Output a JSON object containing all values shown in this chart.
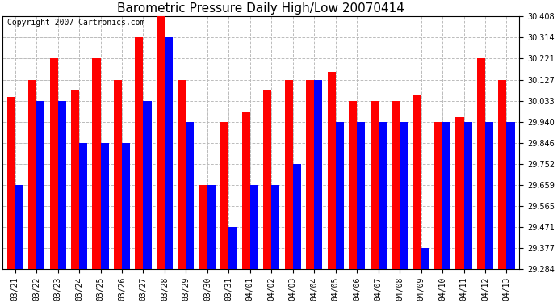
{
  "title": "Barometric Pressure Daily High/Low 20070414",
  "copyright": "Copyright 2007 Cartronics.com",
  "dates": [
    "03/21",
    "03/22",
    "03/23",
    "03/24",
    "03/25",
    "03/26",
    "03/27",
    "03/28",
    "03/29",
    "03/30",
    "03/31",
    "04/01",
    "04/02",
    "04/03",
    "04/04",
    "04/05",
    "04/06",
    "04/07",
    "04/08",
    "04/09",
    "04/10",
    "04/11",
    "04/12",
    "04/13"
  ],
  "highs": [
    30.05,
    30.127,
    30.221,
    30.08,
    30.221,
    30.127,
    30.314,
    30.408,
    30.127,
    29.659,
    29.94,
    29.98,
    30.08,
    30.127,
    30.127,
    30.16,
    30.033,
    30.033,
    30.033,
    30.06,
    29.94,
    29.96,
    30.221,
    30.127
  ],
  "lows": [
    29.659,
    30.033,
    30.033,
    29.846,
    29.846,
    29.846,
    30.033,
    30.314,
    29.94,
    29.659,
    29.471,
    29.659,
    29.659,
    29.752,
    30.127,
    29.94,
    29.94,
    29.94,
    29.94,
    29.377,
    29.94,
    29.94,
    29.94,
    29.94
  ],
  "ylim_min": 29.284,
  "ylim_max": 30.408,
  "yticks": [
    29.284,
    29.377,
    29.471,
    29.565,
    29.659,
    29.752,
    29.846,
    29.94,
    30.033,
    30.127,
    30.221,
    30.314,
    30.408
  ],
  "bar_width": 0.38,
  "high_color": "#ff0000",
  "low_color": "#0000ff",
  "bg_color": "#ffffff",
  "plot_bg_color": "#ffffff",
  "grid_color": "#bbbbbb",
  "title_fontsize": 11,
  "tick_fontsize": 7,
  "copyright_fontsize": 7
}
